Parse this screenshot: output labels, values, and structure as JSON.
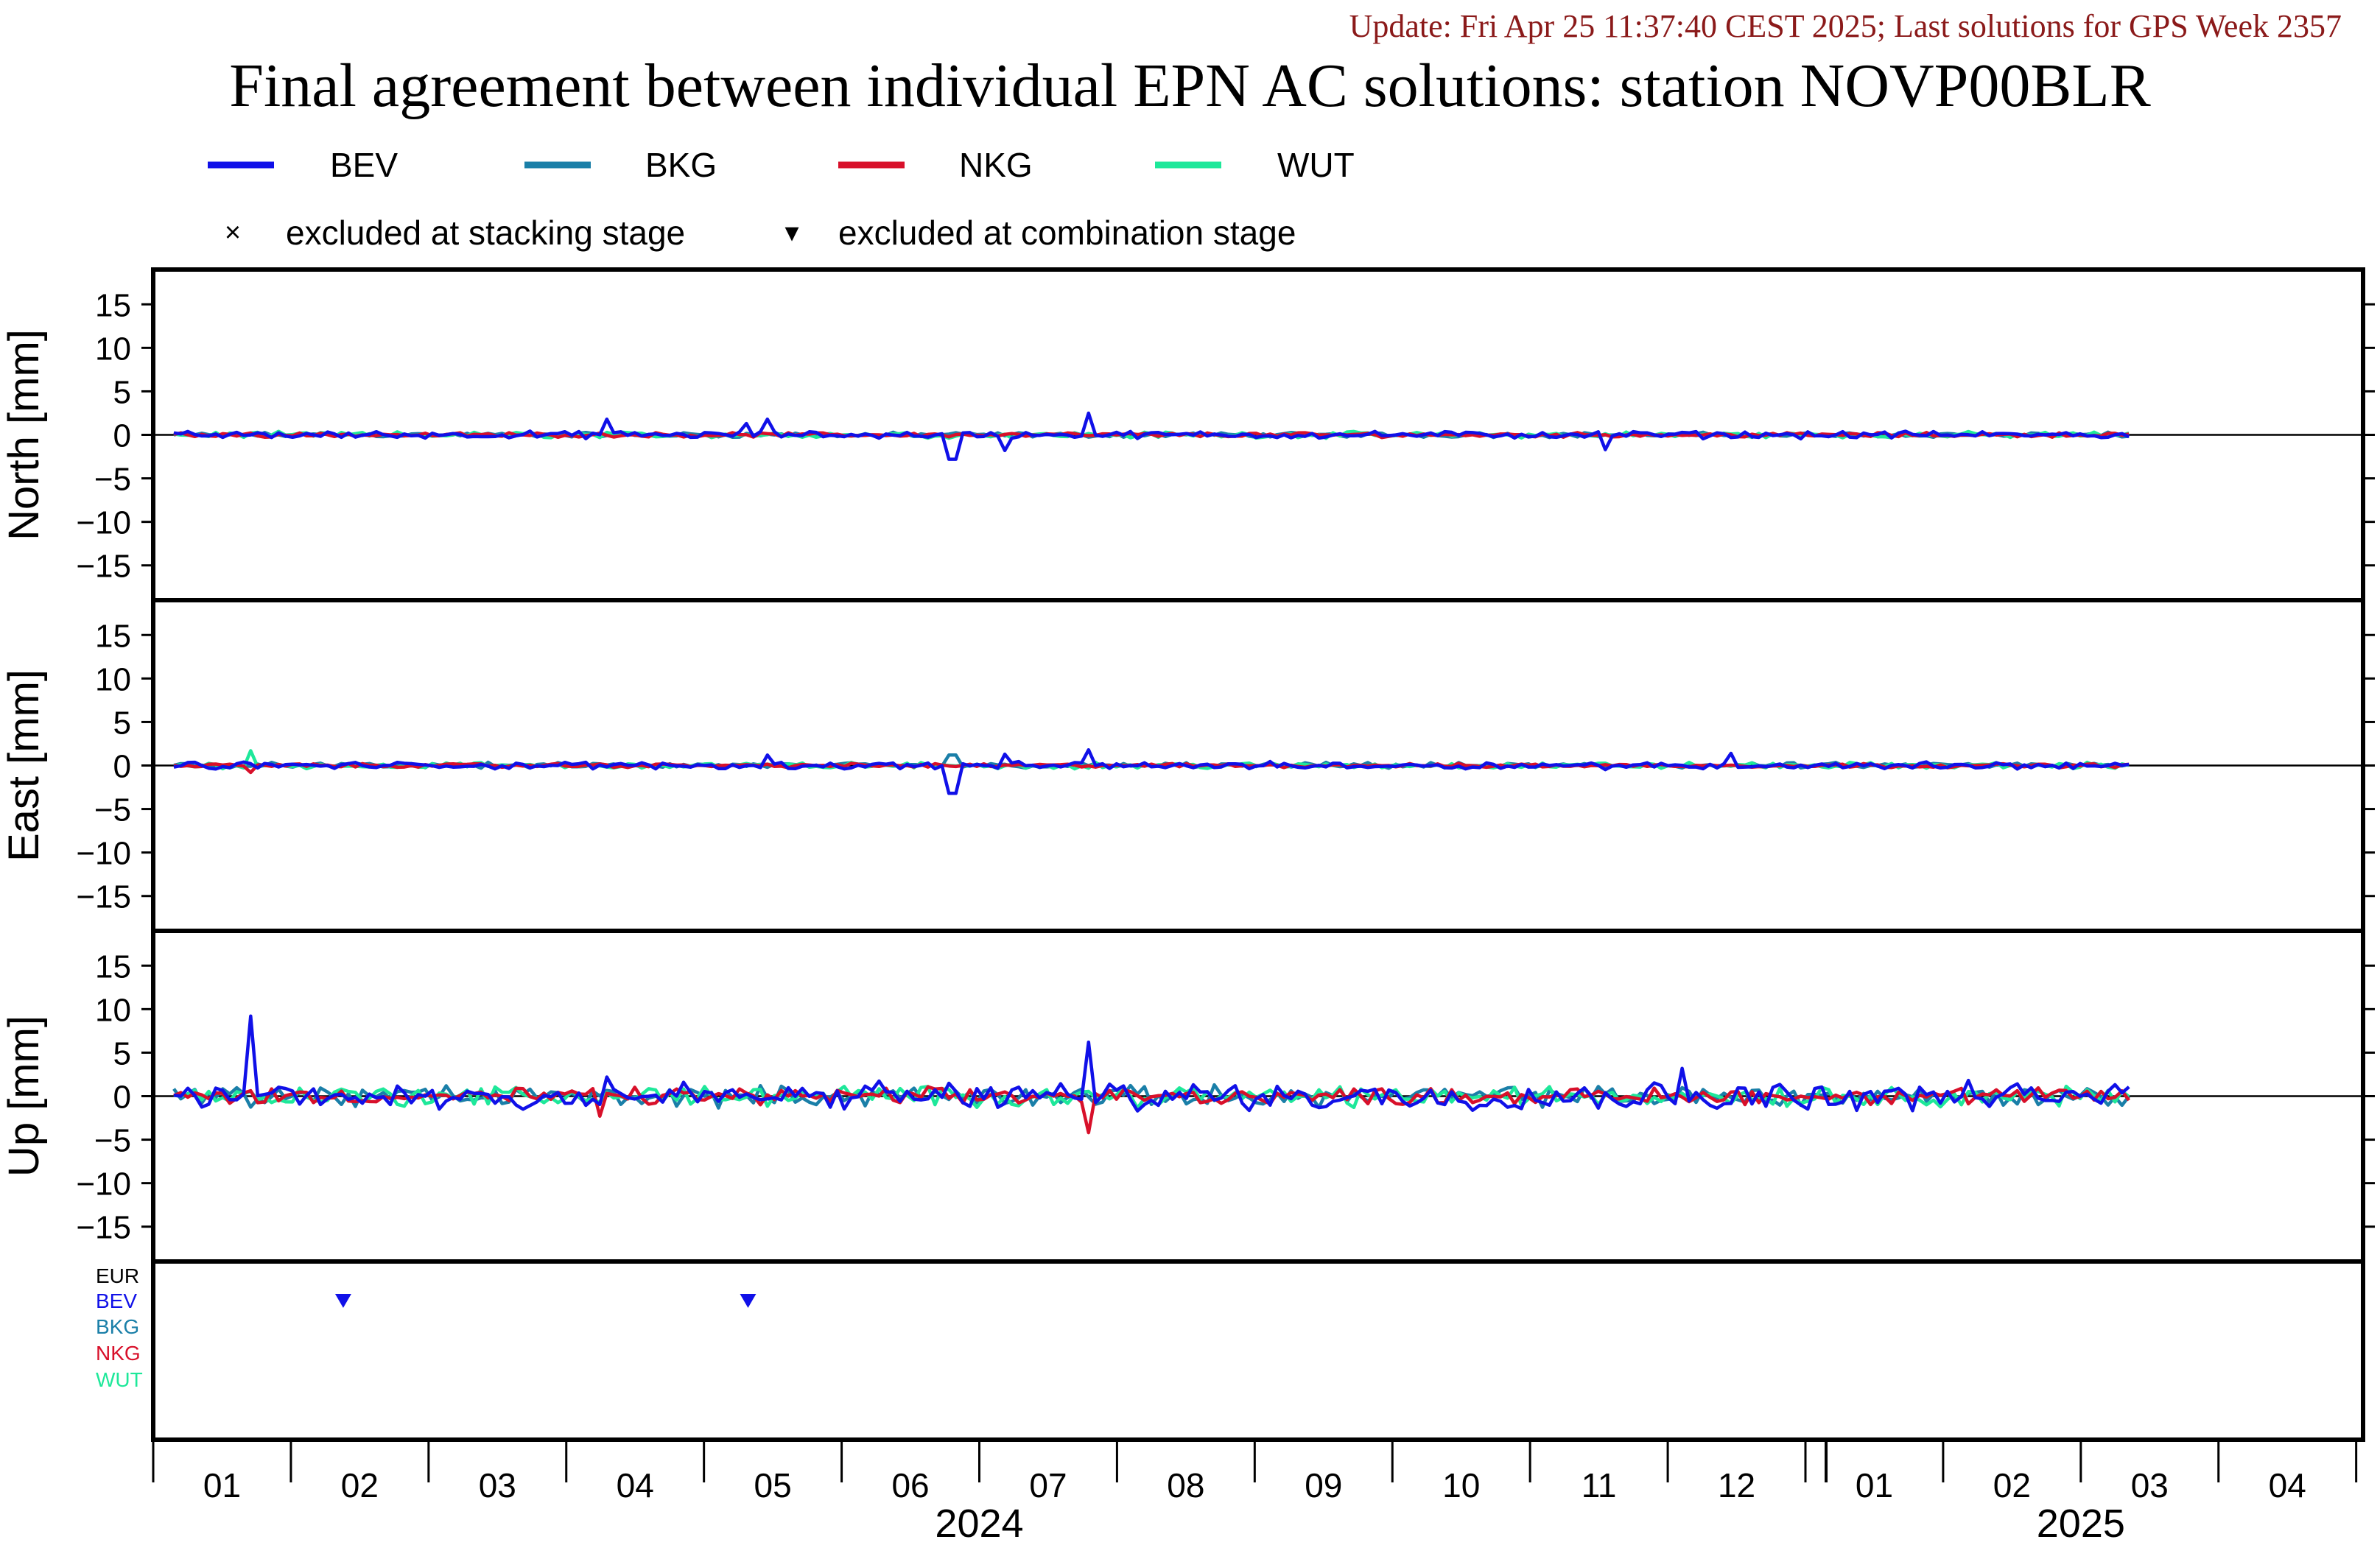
{
  "header": {
    "update": "Update: Fri Apr 25 11:37:40 CEST 2025; Last solutions for GPS Week 2357",
    "title": "Final agreement between individual EPN AC solutions: station NOVP00BLR"
  },
  "legend": {
    "series": [
      {
        "name": "BEV",
        "color": "#1010e8"
      },
      {
        "name": "BKG",
        "color": "#1a7fa8"
      },
      {
        "name": "NKG",
        "color": "#d8102a"
      },
      {
        "name": "WUT",
        "color": "#1ee89a"
      }
    ],
    "markers": [
      {
        "symbol": "×",
        "label": "excluded at stacking stage"
      },
      {
        "symbol": "▾",
        "label": "excluded at combination stage"
      }
    ]
  },
  "colors": {
    "EUR": "#000000",
    "BEV": "#1010e8",
    "BKG": "#1a7fa8",
    "NKG": "#d8102a",
    "WUT": "#1ee89a"
  },
  "chart_data": [
    {
      "type": "line",
      "ylabel": "North [mm]",
      "ylim": [
        -19,
        19
      ],
      "yticks": [
        15,
        10,
        5,
        0,
        -5,
        -10,
        -15
      ],
      "xlim": [
        0,
        16.05
      ],
      "x_start": 0.15,
      "x_end": 14.35,
      "points": 280,
      "spikes": [
        {
          "series": "BEV",
          "x": 3.3,
          "y": 1.8
        },
        {
          "series": "BEV",
          "x": 4.3,
          "y": 1.3
        },
        {
          "series": "BEV",
          "x": 4.45,
          "y": 1.8
        },
        {
          "series": "BEV",
          "x": 5.8,
          "y": -2.8
        },
        {
          "series": "BEV",
          "x": 6.2,
          "y": -1.8
        },
        {
          "series": "BEV",
          "x": 6.8,
          "y": 2.5
        },
        {
          "series": "BEV",
          "x": 10.55,
          "y": -1.7
        }
      ],
      "series": [
        {
          "name": "BEV",
          "amplitude": 0.35
        },
        {
          "name": "BKG",
          "amplitude": 0.25
        },
        {
          "name": "NKG",
          "amplitude": 0.22
        },
        {
          "name": "WUT",
          "amplitude": 0.3
        }
      ]
    },
    {
      "type": "line",
      "ylabel": "East [mm]",
      "ylim": [
        -19,
        19
      ],
      "yticks": [
        15,
        10,
        5,
        0,
        -5,
        -10,
        -15
      ],
      "xlim": [
        0,
        16.05
      ],
      "x_start": 0.15,
      "x_end": 14.35,
      "points": 280,
      "spikes": [
        {
          "series": "WUT",
          "x": 0.7,
          "y": 1.7
        },
        {
          "series": "NKG",
          "x": 0.7,
          "y": -0.8
        },
        {
          "series": "BEV",
          "x": 4.45,
          "y": 1.2
        },
        {
          "series": "BEV",
          "x": 5.8,
          "y": -3.2
        },
        {
          "series": "BKG",
          "x": 5.8,
          "y": 1.2
        },
        {
          "series": "BEV",
          "x": 6.2,
          "y": 1.3
        },
        {
          "series": "BEV",
          "x": 6.8,
          "y": 1.8
        },
        {
          "series": "BEV",
          "x": 11.45,
          "y": 1.4
        }
      ],
      "series": [
        {
          "name": "BEV",
          "amplitude": 0.35
        },
        {
          "name": "BKG",
          "amplitude": 0.28
        },
        {
          "name": "NKG",
          "amplitude": 0.2
        },
        {
          "name": "WUT",
          "amplitude": 0.3
        }
      ]
    },
    {
      "type": "line",
      "ylabel": "Up [mm]",
      "ylim": [
        -19,
        19
      ],
      "yticks": [
        15,
        10,
        5,
        0,
        -5,
        -10,
        -15
      ],
      "xlim": [
        0,
        16.05
      ],
      "x_start": 0.15,
      "x_end": 14.35,
      "points": 280,
      "spikes": [
        {
          "series": "BEV",
          "x": 0.7,
          "y": 9.2
        },
        {
          "series": "NKG",
          "x": 3.25,
          "y": -2.3
        },
        {
          "series": "BEV",
          "x": 3.3,
          "y": 2.2
        },
        {
          "series": "BEV",
          "x": 6.8,
          "y": 6.2
        },
        {
          "series": "NKG",
          "x": 6.8,
          "y": -4.2
        },
        {
          "series": "BEV",
          "x": 11.1,
          "y": 3.2
        }
      ],
      "series": [
        {
          "name": "BEV",
          "amplitude": 1.4
        },
        {
          "name": "BKG",
          "amplitude": 1.0
        },
        {
          "name": "NKG",
          "amplitude": 0.8
        },
        {
          "name": "WUT",
          "amplitude": 1.0
        }
      ]
    },
    {
      "type": "scatter",
      "ylabels": [
        "EUR",
        "BEV",
        "BKG",
        "NKG",
        "WUT"
      ],
      "excluded_combination": [
        {
          "series": "BEV",
          "x": 1.38
        },
        {
          "series": "BEV",
          "x": 4.32
        }
      ]
    }
  ],
  "x_axis": {
    "month_labels": [
      "01",
      "02",
      "03",
      "04",
      "05",
      "06",
      "07",
      "08",
      "09",
      "10",
      "11",
      "12",
      "01",
      "02",
      "03",
      "04"
    ],
    "year_labels": [
      {
        "label": "2024",
        "x": 6.0
      },
      {
        "label": "2025",
        "x": 14.0
      }
    ],
    "year_boundary": 12.15
  }
}
